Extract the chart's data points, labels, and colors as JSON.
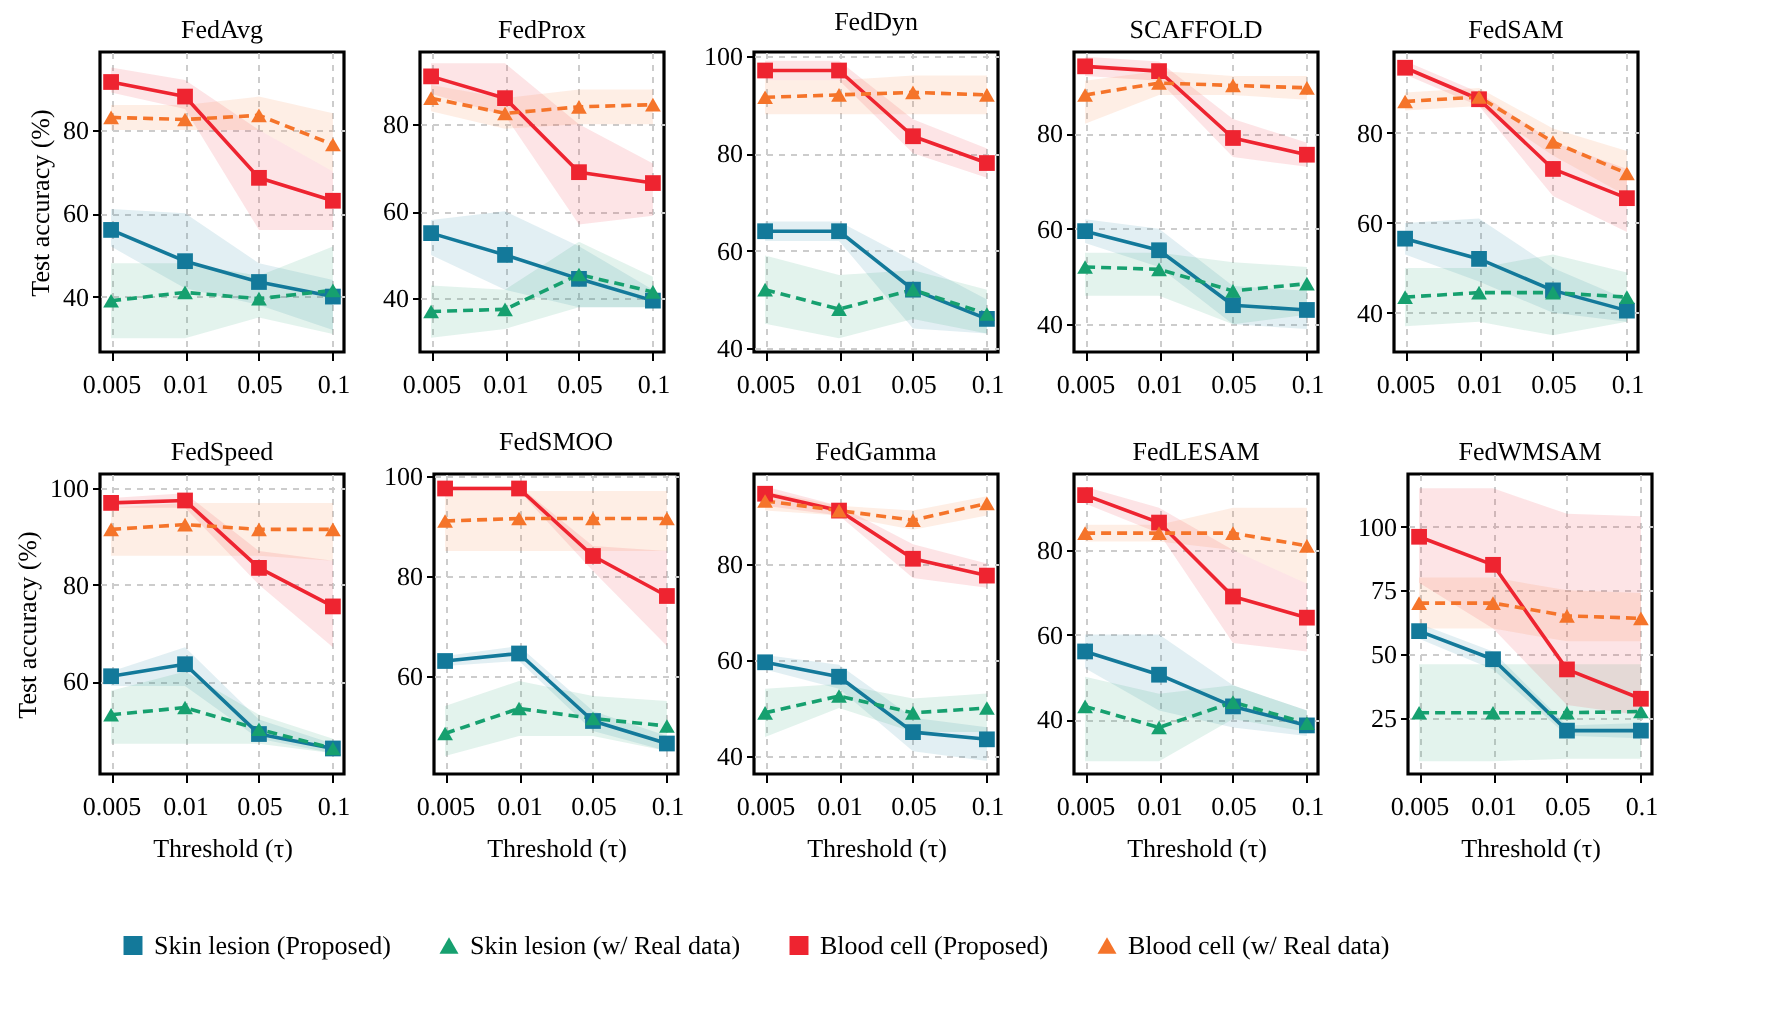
{
  "chart_data": [
    {
      "type": "line",
      "title": "FedAvg",
      "ylabel": "Test accuracy (%)",
      "categories": [
        "0.005",
        "0.01",
        "0.05",
        "0.1"
      ],
      "ylim": [
        26.7,
        98.7
      ],
      "yticks": [
        40,
        60,
        80
      ],
      "grid": true,
      "legend": "bottom",
      "tick_labels": true,
      "series": [
        {
          "name": "Skin lesion (Proposed)",
          "color": "#13799a",
          "marker": "square",
          "line_style": "solid",
          "values": [
            56,
            48.5,
            43.5,
            40
          ],
          "lower": [
            52,
            42,
            38,
            32
          ],
          "upper": [
            61,
            60,
            48,
            44
          ]
        },
        {
          "name": "Skin lesion (w/ Real data)",
          "color": "#16a06f",
          "marker": "triangle",
          "line_style": "dashed",
          "values": [
            39,
            41,
            39.5,
            41.5
          ],
          "lower": [
            30,
            30,
            35,
            31
          ],
          "upper": [
            48,
            48,
            45,
            52
          ]
        },
        {
          "name": "Blood cell (Proposed)",
          "color": "#ee2430",
          "marker": "square",
          "line_style": "solid",
          "values": [
            91.5,
            88,
            68.5,
            63
          ],
          "lower": [
            89,
            85,
            56,
            56
          ],
          "upper": [
            95,
            92,
            80,
            70
          ]
        },
        {
          "name": "Blood cell (w/ Real data)",
          "color": "#f5742a",
          "marker": "triangle",
          "line_style": "dashed",
          "values": [
            83,
            82.5,
            83.5,
            76.5
          ],
          "lower": [
            80,
            80,
            80,
            70
          ],
          "upper": [
            86,
            86,
            88,
            84
          ]
        }
      ]
    },
    {
      "type": "line",
      "title": "FedProx",
      "categories": [
        "0.005",
        "0.01",
        "0.05",
        "0.1"
      ],
      "ylim": [
        27.7,
        96.6
      ],
      "yticks": [
        40,
        60,
        80
      ],
      "grid": true,
      "series": [
        {
          "color": "#13799a",
          "marker": "square",
          "line_style": "solid",
          "values": [
            55,
            50,
            44.5,
            39.5
          ],
          "lower": [
            50,
            42,
            38,
            38
          ],
          "upper": [
            58,
            60,
            52,
            42
          ]
        },
        {
          "color": "#16a06f",
          "marker": "triangle",
          "line_style": "dashed",
          "values": [
            37,
            37.5,
            45.5,
            41.5
          ],
          "lower": [
            31,
            33,
            38,
            38
          ],
          "upper": [
            43,
            42,
            53,
            45
          ]
        },
        {
          "color": "#ee2430",
          "marker": "square",
          "line_style": "solid",
          "values": [
            91,
            86,
            69,
            66.5
          ],
          "lower": [
            87,
            82,
            57,
            59
          ],
          "upper": [
            94,
            94,
            80,
            71
          ]
        },
        {
          "color": "#f5742a",
          "marker": "triangle",
          "line_style": "dashed",
          "values": [
            86,
            82.5,
            84,
            84.5
          ],
          "lower": [
            83,
            79,
            80,
            80
          ],
          "upper": [
            89,
            86,
            88,
            88
          ]
        }
      ]
    },
    {
      "type": "line",
      "title": "FedDyn",
      "categories": [
        "0.005",
        "0.01",
        "0.05",
        "0.1"
      ],
      "ylim": [
        39.2,
        100.8
      ],
      "yticks": [
        40,
        60,
        80,
        100
      ],
      "grid": true,
      "series": [
        {
          "color": "#13799a",
          "marker": "square",
          "line_style": "solid",
          "values": [
            64,
            64,
            52,
            46
          ],
          "lower": [
            62,
            62,
            44,
            43
          ],
          "upper": [
            66,
            66,
            58,
            50
          ]
        },
        {
          "color": "#16a06f",
          "marker": "triangle",
          "line_style": "dashed",
          "values": [
            52,
            48,
            52,
            47
          ],
          "lower": [
            45,
            42,
            46,
            43
          ],
          "upper": [
            59,
            55,
            56,
            52
          ]
        },
        {
          "color": "#ee2430",
          "marker": "square",
          "line_style": "solid",
          "values": [
            97,
            97,
            83.5,
            78
          ],
          "lower": [
            95,
            95,
            80,
            75
          ],
          "upper": [
            99,
            99,
            87,
            81
          ]
        },
        {
          "color": "#f5742a",
          "marker": "triangle",
          "line_style": "dashed",
          "values": [
            91.5,
            92,
            92.5,
            92
          ],
          "lower": [
            88,
            88,
            88,
            88
          ],
          "upper": [
            95,
            95,
            96,
            96
          ]
        }
      ]
    },
    {
      "type": "line",
      "title": "SCAFFOLD",
      "categories": [
        "0.005",
        "0.01",
        "0.05",
        "0.1"
      ],
      "ylim": [
        34.2,
        97
      ],
      "yticks": [
        40,
        60,
        80
      ],
      "grid": true,
      "series": [
        {
          "color": "#13799a",
          "marker": "square",
          "line_style": "solid",
          "values": [
            59.5,
            55.5,
            44,
            43
          ],
          "lower": [
            57,
            52,
            40,
            39
          ],
          "upper": [
            62,
            60,
            48,
            47
          ]
        },
        {
          "color": "#16a06f",
          "marker": "triangle",
          "line_style": "dashed",
          "values": [
            52,
            51.5,
            47,
            48.5
          ],
          "lower": [
            46,
            46,
            40,
            42
          ],
          "upper": [
            55,
            55,
            53,
            52
          ]
        },
        {
          "color": "#ee2430",
          "marker": "square",
          "line_style": "solid",
          "values": [
            94,
            93,
            79,
            75.5
          ],
          "lower": [
            92,
            91,
            75,
            73
          ],
          "upper": [
            96,
            95,
            83,
            78
          ]
        },
        {
          "color": "#f5742a",
          "marker": "triangle",
          "line_style": "dashed",
          "values": [
            88,
            90.5,
            90,
            89.5
          ],
          "lower": [
            82,
            88,
            88,
            87
          ],
          "upper": [
            91,
            93,
            92,
            92
          ]
        }
      ]
    },
    {
      "type": "line",
      "title": "FedSAM",
      "categories": [
        "0.005",
        "0.01",
        "0.05",
        "0.1"
      ],
      "ylim": [
        31.3,
        98
      ],
      "yticks": [
        40,
        60,
        80
      ],
      "grid": true,
      "series": [
        {
          "color": "#13799a",
          "marker": "square",
          "line_style": "solid",
          "values": [
            56.5,
            52,
            45,
            40.5
          ],
          "lower": [
            53,
            47,
            40,
            38
          ],
          "upper": [
            60,
            61,
            50,
            43
          ]
        },
        {
          "color": "#16a06f",
          "marker": "triangle",
          "line_style": "dashed",
          "values": [
            43.5,
            44.5,
            44.5,
            43.5
          ],
          "lower": [
            37,
            38,
            35,
            38
          ],
          "upper": [
            50,
            50,
            53,
            49
          ]
        },
        {
          "color": "#ee2430",
          "marker": "square",
          "line_style": "solid",
          "values": [
            94.5,
            87.5,
            72,
            65.5
          ],
          "lower": [
            93,
            86,
            66,
            58
          ],
          "upper": [
            96,
            89,
            78,
            72
          ]
        },
        {
          "color": "#f5742a",
          "marker": "triangle",
          "line_style": "dashed",
          "values": [
            87,
            88,
            78,
            71
          ],
          "lower": [
            85,
            86,
            75,
            66
          ],
          "upper": [
            89,
            90,
            81,
            76
          ]
        }
      ]
    },
    {
      "type": "line",
      "title": "FedSpeed",
      "ylabel": "Test accuracy (%)",
      "xlabel": "Threshold (τ)",
      "categories": [
        "0.005",
        "0.01",
        "0.05",
        "0.1"
      ],
      "ylim": [
        40.7,
        103
      ],
      "yticks": [
        60,
        80,
        100
      ],
      "grid": true,
      "series": [
        {
          "color": "#13799a",
          "marker": "square",
          "line_style": "solid",
          "values": [
            61,
            63.5,
            49,
            46
          ],
          "lower": [
            59,
            59,
            48,
            45
          ],
          "upper": [
            62,
            67,
            52,
            47
          ]
        },
        {
          "color": "#16a06f",
          "marker": "triangle",
          "line_style": "dashed",
          "values": [
            53,
            54.5,
            50,
            46
          ],
          "lower": [
            47,
            47,
            47,
            45
          ],
          "upper": [
            58,
            62,
            53,
            48
          ]
        },
        {
          "color": "#ee2430",
          "marker": "square",
          "line_style": "solid",
          "values": [
            97,
            97.5,
            83.5,
            75.5
          ],
          "lower": [
            96,
            96,
            80,
            67
          ],
          "upper": [
            98,
            99,
            87,
            85
          ]
        },
        {
          "color": "#f5742a",
          "marker": "triangle",
          "line_style": "dashed",
          "values": [
            91.5,
            92.5,
            91.5,
            91.5
          ],
          "lower": [
            86,
            86,
            86,
            85
          ],
          "upper": [
            96,
            97,
            97,
            97
          ]
        }
      ]
    },
    {
      "type": "line",
      "title": "FedSMOO",
      "xlabel": "Threshold (τ)",
      "categories": [
        "0.005",
        "0.01",
        "0.05",
        "0.1"
      ],
      "ylim": [
        40.4,
        100.4
      ],
      "yticks": [
        60,
        80,
        100
      ],
      "grid": true,
      "series": [
        {
          "color": "#13799a",
          "marker": "square",
          "line_style": "solid",
          "values": [
            63,
            64.5,
            51,
            46.5
          ],
          "lower": [
            62,
            63,
            49,
            45
          ],
          "upper": [
            64,
            66,
            53,
            48
          ]
        },
        {
          "color": "#16a06f",
          "marker": "triangle",
          "line_style": "dashed",
          "values": [
            48.5,
            53.5,
            51.5,
            50
          ],
          "lower": [
            44,
            48,
            48,
            45
          ],
          "upper": [
            54,
            59,
            56,
            55
          ]
        },
        {
          "color": "#ee2430",
          "marker": "square",
          "line_style": "solid",
          "values": [
            97.5,
            97.5,
            84,
            76
          ],
          "lower": [
            97,
            97,
            81,
            66
          ],
          "upper": [
            98,
            98,
            86,
            85
          ]
        },
        {
          "color": "#f5742a",
          "marker": "triangle",
          "line_style": "dashed",
          "values": [
            91,
            91.5,
            91.5,
            91.5
          ],
          "lower": [
            85,
            85,
            85,
            85
          ],
          "upper": [
            97,
            97,
            97,
            97
          ]
        }
      ]
    },
    {
      "type": "line",
      "title": "FedGamma",
      "xlabel": "Threshold (τ)",
      "categories": [
        "0.005",
        "0.01",
        "0.05",
        "0.1"
      ],
      "ylim": [
        36.3,
        98.6
      ],
      "yticks": [
        40,
        60,
        80
      ],
      "grid": true,
      "series": [
        {
          "color": "#13799a",
          "marker": "square",
          "line_style": "solid",
          "values": [
            59.5,
            56.5,
            45,
            43.5
          ],
          "lower": [
            58,
            54,
            41,
            39
          ],
          "upper": [
            61,
            59,
            48,
            46
          ]
        },
        {
          "color": "#16a06f",
          "marker": "triangle",
          "line_style": "dashed",
          "values": [
            49,
            52.5,
            49,
            50
          ],
          "lower": [
            44,
            50,
            45,
            45
          ],
          "upper": [
            54,
            55,
            52,
            53
          ]
        },
        {
          "color": "#ee2430",
          "marker": "square",
          "line_style": "solid",
          "values": [
            94.5,
            91,
            81,
            77.5
          ],
          "lower": [
            92,
            90,
            77,
            75
          ],
          "upper": [
            96,
            92,
            84,
            80
          ]
        },
        {
          "color": "#f5742a",
          "marker": "triangle",
          "line_style": "dashed",
          "values": [
            93,
            91,
            89,
            92.5
          ],
          "lower": [
            91,
            90,
            87,
            90
          ],
          "upper": [
            95,
            92,
            91,
            94
          ]
        }
      ]
    },
    {
      "type": "line",
      "title": "FedLESAM",
      "xlabel": "Threshold (τ)",
      "categories": [
        "0.005",
        "0.01",
        "0.05",
        "0.1"
      ],
      "ylim": [
        27,
        98
      ],
      "yticks": [
        40,
        60,
        80
      ],
      "grid": true,
      "series": [
        {
          "color": "#13799a",
          "marker": "square",
          "line_style": "solid",
          "values": [
            56,
            50.5,
            43,
            38.5
          ],
          "lower": [
            52,
            42,
            38,
            36
          ],
          "upper": [
            60,
            60,
            48,
            42
          ]
        },
        {
          "color": "#16a06f",
          "marker": "triangle",
          "line_style": "dashed",
          "values": [
            43,
            38,
            44,
            39
          ],
          "lower": [
            30,
            30,
            40,
            37
          ],
          "upper": [
            50,
            46,
            48,
            42
          ]
        },
        {
          "color": "#ee2430",
          "marker": "square",
          "line_style": "solid",
          "values": [
            93,
            86.5,
            69,
            64
          ],
          "lower": [
            91,
            84,
            58,
            56
          ],
          "upper": [
            95,
            90,
            80,
            72
          ]
        },
        {
          "color": "#f5742a",
          "marker": "triangle",
          "line_style": "dashed",
          "values": [
            84,
            84,
            84,
            81
          ],
          "lower": [
            82,
            82,
            80,
            72
          ],
          "upper": [
            86,
            86,
            90,
            90
          ]
        }
      ]
    },
    {
      "type": "line",
      "title": "FedWMSAM",
      "xlabel": "Threshold (τ)",
      "categories": [
        "0.005",
        "0.01",
        "0.05",
        "0.1"
      ],
      "ylim": [
        3,
        120.6
      ],
      "yticks": [
        25,
        50,
        75,
        100
      ],
      "grid": true,
      "series": [
        {
          "color": "#13799a",
          "marker": "square",
          "line_style": "solid",
          "values": [
            59,
            48,
            20,
            20
          ],
          "lower": [
            56,
            44,
            18,
            17
          ],
          "upper": [
            62,
            51,
            22,
            23
          ]
        },
        {
          "color": "#16a06f",
          "marker": "triangle",
          "line_style": "dashed",
          "values": [
            27,
            27,
            27,
            27.5
          ],
          "lower": [
            8,
            8,
            9,
            9
          ],
          "upper": [
            46,
            46,
            46,
            46
          ]
        },
        {
          "color": "#ee2430",
          "marker": "square",
          "line_style": "solid",
          "values": [
            96,
            85,
            44,
            32.5
          ],
          "lower": [
            78,
            60,
            30,
            26
          ],
          "upper": [
            115,
            115,
            105,
            104
          ]
        },
        {
          "color": "#f5742a",
          "marker": "triangle",
          "line_style": "dashed",
          "values": [
            70,
            70,
            65,
            64
          ],
          "lower": [
            60,
            60,
            55,
            55
          ],
          "upper": [
            80,
            80,
            75,
            74
          ]
        }
      ]
    }
  ]
}
